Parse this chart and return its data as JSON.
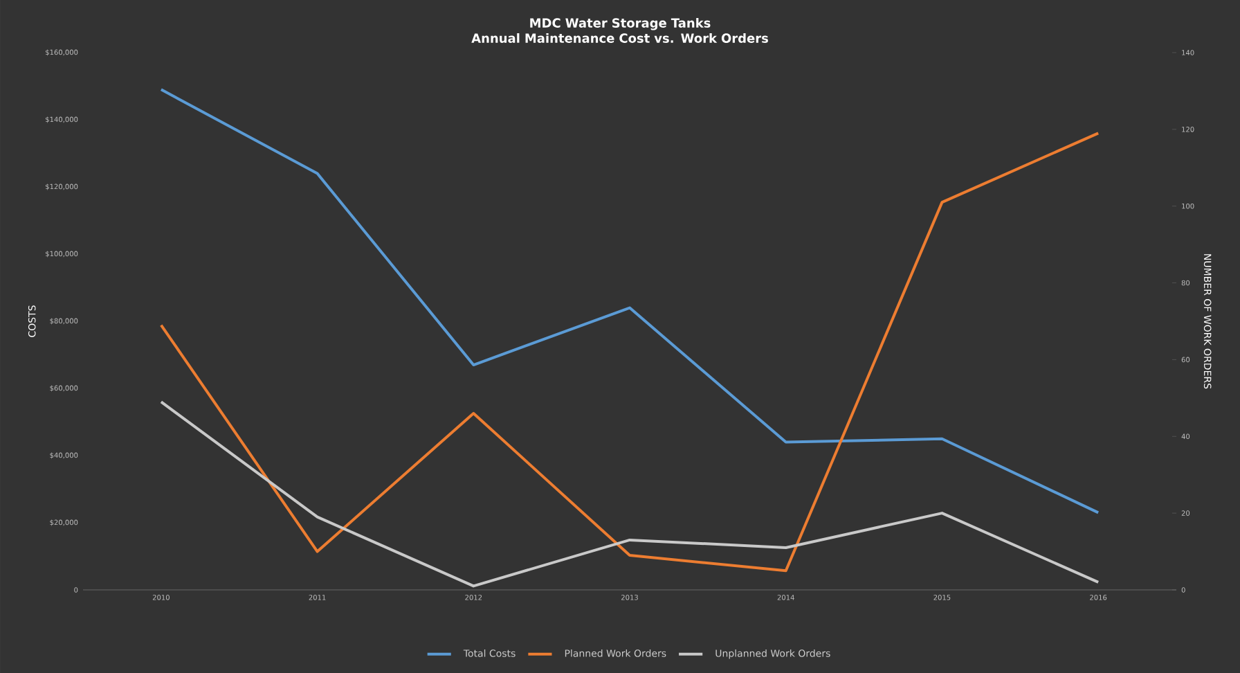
{
  "chart_data": {
    "type": "line",
    "title": "MDC Water Storage Tanks\nAnnual Maintenance Cost vs. Work Orders",
    "categories": [
      "2010",
      "2011",
      "2012",
      "2013",
      "2014",
      "2015",
      "2016"
    ],
    "series": [
      {
        "name": "Total Costs",
        "color": "#5b9bd5",
        "values": [
          149000,
          124000,
          67000,
          84000,
          44000,
          45000,
          23000
        ]
      },
      {
        "name": "Planned Work Orders",
        "color": "#ed7d31",
        "axis": "y2",
        "values": [
          69,
          10,
          46,
          9,
          5,
          101,
          119
        ]
      },
      {
        "name": "Unplanned Work Orders",
        "color": "#c9c9c9",
        "axis": "y2",
        "values": [
          49,
          19,
          1,
          13,
          11,
          20,
          2
        ]
      }
    ],
    "ylabel": "COSTS",
    "y2label": "NUMBER OF WORK ORDERS",
    "ylim": [
      0,
      160000
    ],
    "yticks": [
      0,
      {
        "value": 20000,
        "label": "$20,000"
      },
      {
        "value": 40000,
        "label": "$40,000"
      },
      {
        "value": 60000,
        "label": "$60,000"
      },
      {
        "value": 80000,
        "label": "$80,000"
      },
      {
        "value": 100000,
        "label": "$100,000"
      },
      {
        "value": 120000,
        "label": "$120,000"
      },
      {
        "value": 140000,
        "label": "$140,000"
      },
      {
        "value": 160000,
        "label": "$160,000"
      }
    ],
    "y2lim": [
      0,
      140
    ],
    "y2ticks": [
      0,
      20,
      40,
      60,
      80,
      100,
      120,
      140
    ],
    "legend": "bottom",
    "marker": "none",
    "line_style": "solid"
  }
}
